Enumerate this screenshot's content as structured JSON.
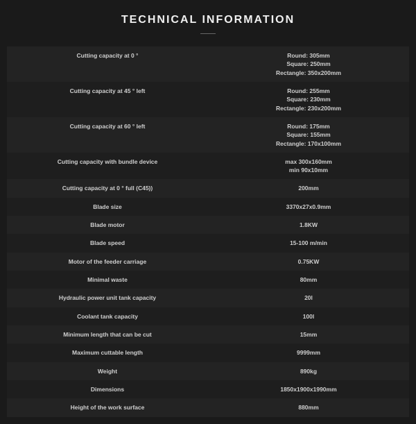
{
  "title": "TECHNICAL INFORMATION",
  "colors": {
    "background": "#1a1a1a",
    "row_odd": "#232323",
    "row_even": "#1e1e1e",
    "text": "#cfcfcf",
    "title_text": "#f0f0f0",
    "divider": "#666666"
  },
  "typography": {
    "title_fontsize": 16,
    "title_letter_spacing": 2,
    "cell_fontsize": 8.5,
    "font_family": "Arial"
  },
  "table": {
    "columns": [
      "label",
      "value"
    ],
    "rows": [
      {
        "label": [
          "Cutting capacity at 0 °"
        ],
        "value": [
          "Round: 305mm",
          "Square: 250mm",
          "Rectangle: 350x200mm"
        ]
      },
      {
        "label": [
          "Cutting capacity at 45 ° left"
        ],
        "value": [
          "Round: 255mm",
          "Square: 230mm",
          "Rectangle: 230x200mm"
        ]
      },
      {
        "label": [
          "Cutting capacity at 60 ° left"
        ],
        "value": [
          "Round: 175mm",
          "Square: 155mm",
          "Rectangle: 170x100mm"
        ]
      },
      {
        "label": [
          "Cutting capacity with bundle device"
        ],
        "value": [
          "max 300x160mm",
          "min 90x10mm"
        ]
      },
      {
        "label": [
          "Cutting capacity at 0 ° full (C45))"
        ],
        "value": [
          "200mm"
        ]
      },
      {
        "label": [
          "Blade size"
        ],
        "value": [
          "3370x27x0.9mm"
        ]
      },
      {
        "label": [
          "Blade motor"
        ],
        "value": [
          "1.8KW"
        ]
      },
      {
        "label": [
          "Blade speed"
        ],
        "value": [
          "15-100 m/min"
        ]
      },
      {
        "label": [
          "Motor of the feeder carriage"
        ],
        "value": [
          "0.75KW"
        ]
      },
      {
        "label": [
          "Minimal waste"
        ],
        "value": [
          "80mm"
        ]
      },
      {
        "label": [
          "Hydraulic power unit tank capacity"
        ],
        "value": [
          "20l"
        ]
      },
      {
        "label": [
          "Coolant tank capacity"
        ],
        "value": [
          "100l"
        ]
      },
      {
        "label": [
          "Minimum length that can be cut"
        ],
        "value": [
          "15mm"
        ]
      },
      {
        "label": [
          "Maximum cuttable length"
        ],
        "value": [
          "9999mm"
        ]
      },
      {
        "label": [
          "Weight"
        ],
        "value": [
          "890kg"
        ]
      },
      {
        "label": [
          "Dimensions"
        ],
        "value": [
          "1850x1900x1990mm"
        ]
      },
      {
        "label": [
          "Height of the work surface"
        ],
        "value": [
          "880mm"
        ]
      }
    ]
  }
}
